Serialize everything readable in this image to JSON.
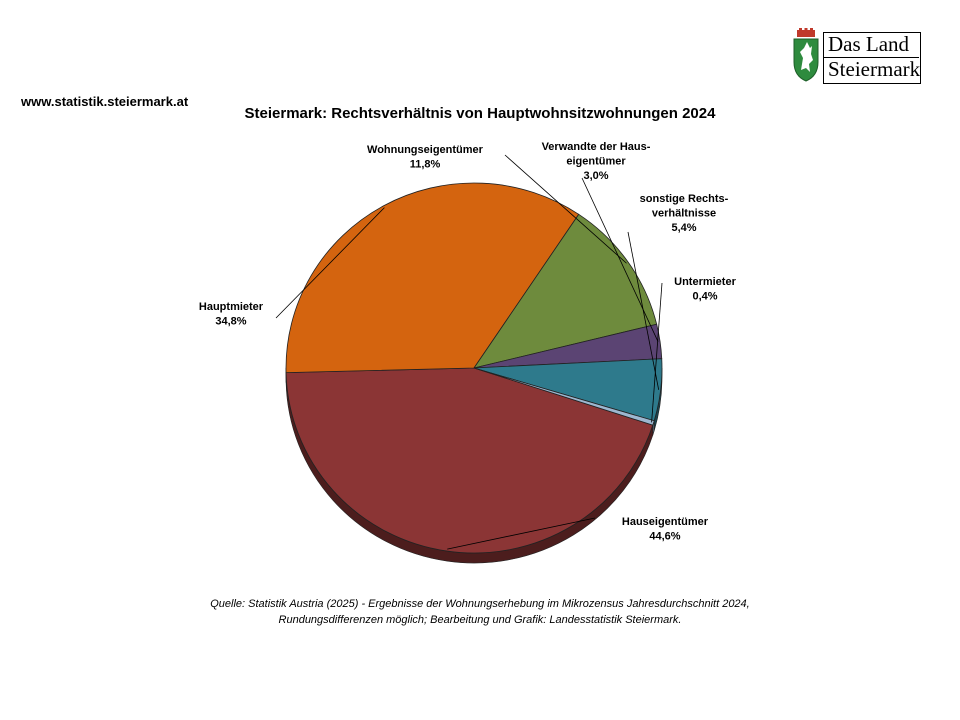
{
  "header": {
    "website": "www.statistik.steiermark.at",
    "logo_line1": "Das Land",
    "logo_line2": "Steiermark",
    "logo_icon": "styrian-panther-shield"
  },
  "chart_data": {
    "type": "pie",
    "title": "Steiermark: Rechtsverhältnis von Hauptwohnsitzwohnungen 2024",
    "slices": [
      {
        "label": [
          "Hauseigentümer"
        ],
        "value": 44.6,
        "display": "44,6%",
        "color": "#8B3535"
      },
      {
        "label": [
          "Hauptmieter"
        ],
        "value": 34.8,
        "display": "34,8%",
        "color": "#D4640F"
      },
      {
        "label": [
          "Wohnungseigentümer"
        ],
        "value": 11.8,
        "display": "11,8%",
        "color": "#6E8B3D"
      },
      {
        "label": [
          "Verwandte der Haus-",
          "eigentümer"
        ],
        "value": 3.0,
        "display": "3,0%",
        "color": "#5B4473"
      },
      {
        "label": [
          "sonstige Rechts-",
          "verhältnisse"
        ],
        "value": 5.4,
        "display": "5,4%",
        "color": "#2E7A8C"
      },
      {
        "label": [
          "Untermieter"
        ],
        "value": 0.4,
        "display": "0,4%",
        "color": "#9DB7D0"
      }
    ]
  },
  "source": {
    "line1": "Quelle: Statistik Austria (2025) - Ergebnisse der Wohnungserhebung im Mikrozensus Jahresdurchschnitt 2024,",
    "line2": "Rundungsdifferenzen möglich; Bearbeitung und Grafik: Landesstatistik Steiermark."
  }
}
